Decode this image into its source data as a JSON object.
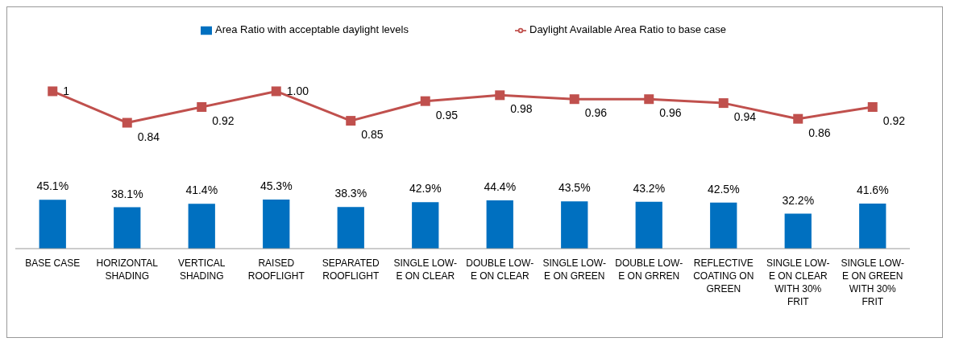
{
  "chart_data": [
    {
      "type": "line",
      "categories": [
        null,
        null,
        null,
        null,
        null,
        null,
        null,
        null,
        null,
        null,
        null,
        null
      ],
      "series": [
        {
          "name": "Daylight Available Area Ratio to base case",
          "color": "#c0504d",
          "values": [
            1,
            0.84,
            0.92,
            1.0,
            0.85,
            0.95,
            0.98,
            0.96,
            0.96,
            0.94,
            0.86,
            0.92
          ],
          "value_labels": [
            "1",
            "0.84",
            "0.92",
            "1.00",
            "0.85",
            "0.95",
            "0.98",
            "0.96",
            "0.96",
            "0.94",
            "0.86",
            "0.92"
          ]
        }
      ],
      "legend": "top",
      "marker": "square",
      "tick_labels": false
    },
    {
      "type": "bar",
      "categories": [
        "BASE CASE",
        "HORIZONTAL SHADING",
        "VERTICAL SHADING",
        "RAISED ROOFLIGHT",
        "SEPARATED ROOFLIGHT",
        "SINGLE LOW-E ON CLEAR",
        "DOUBLE LOW-E ON CLEAR",
        "SINGLE LOW-E ON GREEN",
        "DOUBLE LOW-E ON GRREN",
        "REFLECTIVE COATING ON GREEN",
        "SINGLE LOW-E ON CLEAR WITH 30% FRIT",
        "SINGLE LOW-E ON GREEN WITH 30% FRIT"
      ],
      "series": [
        {
          "name": "Area Ratio with acceptable daylight levels",
          "color": "#0070c0",
          "values": [
            45.1,
            38.1,
            41.4,
            45.3,
            38.3,
            42.9,
            44.4,
            43.5,
            43.2,
            42.5,
            32.2,
            41.6
          ],
          "value_labels": [
            "45.1%",
            "38.1%",
            "41.4%",
            "45.3%",
            "38.3%",
            "42.9%",
            "44.4%",
            "43.5%",
            "43.2%",
            "42.5%",
            "32.2%",
            "41.6%"
          ]
        }
      ],
      "legend": "top",
      "grid": false,
      "tick_labels": "x"
    }
  ]
}
